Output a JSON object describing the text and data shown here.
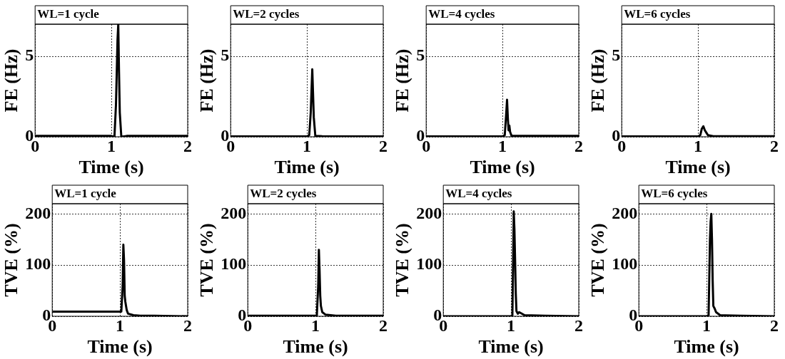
{
  "chart_data": [
    {
      "type": "line",
      "title": "WL=1 cycle",
      "xlabel": "Time (s)",
      "ylabel": "FE (Hz)",
      "color": "#000000",
      "grid": true,
      "xlim": [
        0,
        2
      ],
      "ylim": [
        0,
        7
      ],
      "xticks": [
        0,
        1,
        2
      ],
      "yticks": [
        0,
        5
      ],
      "x": [
        0,
        0.5,
        1.0,
        1.04,
        1.06,
        1.08,
        1.09,
        1.1,
        1.11,
        1.13,
        1.2,
        1.5,
        2
      ],
      "values": [
        0.05,
        0.05,
        0.05,
        0,
        2,
        6,
        7,
        4,
        1.5,
        0,
        0.05,
        0.05,
        0.05
      ]
    },
    {
      "type": "line",
      "title": "WL=2 cycles",
      "xlabel": "Time (s)",
      "ylabel": "FE (Hz)",
      "color": "#000000",
      "grid": true,
      "xlim": [
        0,
        2
      ],
      "ylim": [
        0,
        7
      ],
      "xticks": [
        0,
        1,
        2
      ],
      "yticks": [
        0,
        5
      ],
      "x": [
        0,
        0.5,
        1.0,
        1.03,
        1.05,
        1.07,
        1.09,
        1.11,
        1.2,
        1.5,
        2
      ],
      "values": [
        0.02,
        0.02,
        0.02,
        0.1,
        1.5,
        4.2,
        1.2,
        0.05,
        0.03,
        0.02,
        0.02
      ]
    },
    {
      "type": "line",
      "title": "WL=4 cycles",
      "xlabel": "Time (s)",
      "ylabel": "FE (Hz)",
      "color": "#000000",
      "grid": true,
      "xlim": [
        0,
        2
      ],
      "ylim": [
        0,
        7
      ],
      "xticks": [
        0,
        1,
        2
      ],
      "yticks": [
        0,
        5
      ],
      "x": [
        0,
        0.5,
        1.0,
        1.03,
        1.05,
        1.06,
        1.07,
        1.08,
        1.09,
        1.1,
        1.12,
        1.5,
        2
      ],
      "values": [
        0.02,
        0.02,
        0.02,
        0.1,
        1.5,
        2.3,
        1.2,
        0.4,
        0.7,
        0.3,
        0.05,
        0.05,
        0.05
      ]
    },
    {
      "type": "line",
      "title": "WL=6 cycles",
      "xlabel": "Time (s)",
      "ylabel": "FE (Hz)",
      "color": "#000000",
      "grid": true,
      "xlim": [
        0,
        2
      ],
      "ylim": [
        0,
        7
      ],
      "xticks": [
        0,
        1,
        2
      ],
      "yticks": [
        0,
        5
      ],
      "x": [
        0,
        0.5,
        1.0,
        1.03,
        1.05,
        1.07,
        1.09,
        1.11,
        1.13,
        1.2,
        1.5,
        2
      ],
      "values": [
        0.02,
        0.02,
        0.02,
        0.1,
        0.5,
        0.65,
        0.4,
        0.25,
        0.1,
        0.03,
        0.03,
        0.03
      ]
    },
    {
      "type": "line",
      "title": "WL=1 cycle",
      "xlabel": "Time (s)",
      "ylabel": "TVE (%)",
      "color": "#000000",
      "grid": true,
      "xlim": [
        0,
        2
      ],
      "ylim": [
        0,
        220
      ],
      "xticks": [
        0,
        1,
        2
      ],
      "yticks": [
        0,
        100,
        200
      ],
      "x": [
        0,
        0.5,
        1.0,
        1.02,
        1.04,
        1.05,
        1.06,
        1.07,
        1.08,
        1.1,
        1.12,
        1.2,
        1.3,
        1.5,
        2
      ],
      "values": [
        9,
        9,
        9,
        9,
        60,
        140,
        110,
        40,
        28,
        12,
        5,
        2,
        1,
        1,
        0
      ]
    },
    {
      "type": "line",
      "title": "WL=2 cycles",
      "xlabel": "Time (s)",
      "ylabel": "TVE (%)",
      "color": "#000000",
      "grid": true,
      "xlim": [
        0,
        2
      ],
      "ylim": [
        0,
        220
      ],
      "xticks": [
        0,
        1,
        2
      ],
      "yticks": [
        0,
        100,
        200
      ],
      "x": [
        0,
        0.5,
        1.0,
        1.02,
        1.04,
        1.05,
        1.06,
        1.07,
        1.08,
        1.1,
        1.15,
        1.3,
        2
      ],
      "values": [
        1,
        1,
        1,
        2,
        60,
        130,
        90,
        40,
        20,
        8,
        3,
        1,
        1
      ]
    },
    {
      "type": "line",
      "title": "WL=4 cycles",
      "xlabel": "Time (s)",
      "ylabel": "TVE (%)",
      "color": "#000000",
      "grid": true,
      "xlim": [
        0,
        2
      ],
      "ylim": [
        0,
        220
      ],
      "xticks": [
        0,
        1,
        2
      ],
      "yticks": [
        0,
        100,
        200
      ],
      "x": [
        0,
        0.5,
        1.0,
        1.02,
        1.03,
        1.04,
        1.05,
        1.06,
        1.07,
        1.08,
        1.1,
        1.12,
        1.2,
        1.5,
        2
      ],
      "values": [
        0,
        0,
        0,
        2,
        100,
        205,
        170,
        110,
        45,
        10,
        5,
        8,
        2,
        1,
        0
      ]
    },
    {
      "type": "line",
      "title": "WL=6 cycles",
      "xlabel": "Time (s)",
      "ylabel": "TVE (%)",
      "color": "#000000",
      "grid": true,
      "xlim": [
        0,
        2
      ],
      "ylim": [
        0,
        220
      ],
      "xticks": [
        0,
        1,
        2
      ],
      "yticks": [
        0,
        100,
        200
      ],
      "x": [
        0,
        0.5,
        1.0,
        1.03,
        1.05,
        1.06,
        1.07,
        1.08,
        1.09,
        1.1,
        1.12,
        1.14,
        1.2,
        1.5,
        2
      ],
      "values": [
        0,
        0,
        0,
        2,
        150,
        185,
        200,
        150,
        70,
        20,
        15,
        8,
        2,
        1,
        0
      ]
    }
  ]
}
